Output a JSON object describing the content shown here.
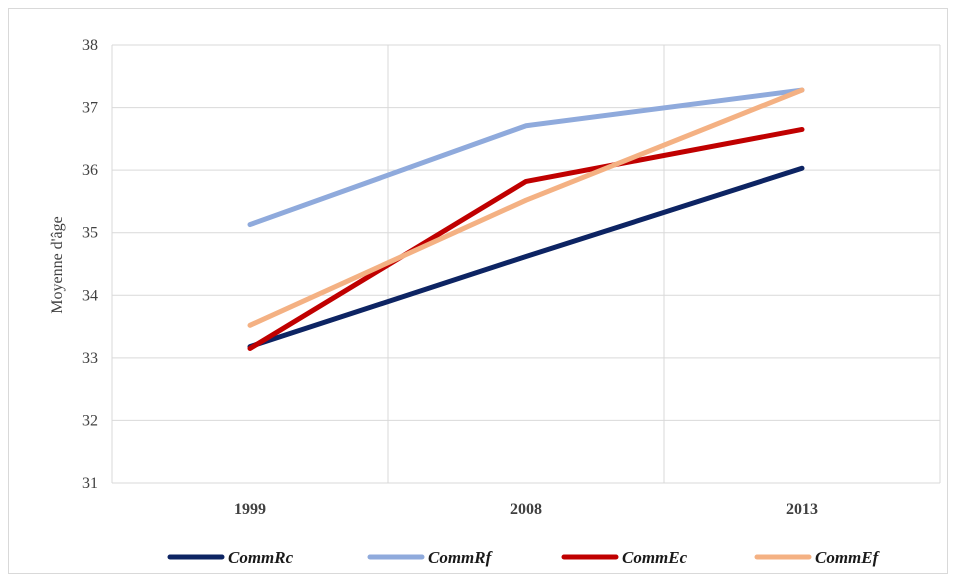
{
  "chart_data": {
    "type": "line",
    "title": "",
    "xlabel": "",
    "ylabel": "Moyenne d'âge",
    "categories": [
      "1999",
      "2008",
      "2013"
    ],
    "ylim": [
      31,
      38
    ],
    "yticks": [
      31,
      32,
      33,
      34,
      35,
      36,
      37,
      38
    ],
    "grid": true,
    "legend_position": "bottom",
    "series": [
      {
        "name": "CommRc",
        "values": [
          33.18,
          34.62,
          36.03
        ],
        "color": "#0d2463"
      },
      {
        "name": "CommRf",
        "values": [
          35.13,
          36.71,
          37.28
        ],
        "color": "#8faadc"
      },
      {
        "name": "CommEc",
        "values": [
          33.15,
          35.82,
          36.65
        ],
        "color": "#c00000"
      },
      {
        "name": "CommEf",
        "values": [
          33.52,
          35.52,
          37.28
        ],
        "color": "#f4b183"
      }
    ]
  }
}
